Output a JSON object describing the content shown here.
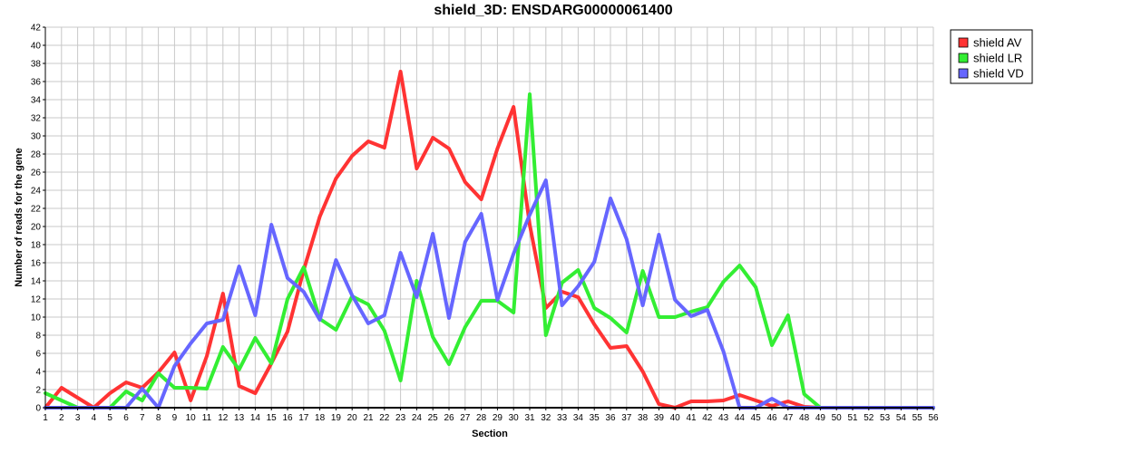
{
  "chart_data": {
    "type": "line",
    "title": "shield_3D: ENSDARG00000061400",
    "xlabel": "Section",
    "ylabel": "Number of reads for the gene",
    "x": [
      1,
      2,
      3,
      4,
      5,
      6,
      7,
      8,
      9,
      10,
      11,
      12,
      13,
      14,
      15,
      16,
      17,
      18,
      19,
      20,
      21,
      22,
      23,
      24,
      25,
      26,
      27,
      28,
      29,
      30,
      31,
      32,
      33,
      34,
      35,
      36,
      37,
      38,
      39,
      40,
      41,
      42,
      43,
      44,
      45,
      46,
      47,
      48,
      49,
      50,
      51,
      52,
      53,
      54,
      55,
      56
    ],
    "xlim": [
      1,
      56
    ],
    "ylim": [
      0,
      42
    ],
    "yticks": [
      0,
      2,
      4,
      6,
      8,
      10,
      12,
      14,
      16,
      18,
      20,
      22,
      24,
      26,
      28,
      30,
      32,
      34,
      36,
      38,
      40,
      42
    ],
    "grid": true,
    "legend_position": "top-right",
    "series": [
      {
        "name": "shield AV",
        "color": "#ff3333",
        "values": [
          0,
          2.2,
          1.1,
          0,
          1.6,
          2.8,
          2.2,
          3.9,
          6.1,
          0.8,
          5.7,
          12.6,
          2.4,
          1.6,
          4.9,
          8.4,
          15.2,
          21.1,
          25.3,
          27.8,
          29.4,
          28.7,
          37.1,
          26.4,
          29.8,
          28.6,
          24.9,
          23.0,
          28.6,
          33.2,
          20.2,
          11.0,
          12.8,
          12.2,
          9.2,
          6.6,
          6.8,
          4.0,
          0.4,
          0,
          0.7,
          0.7,
          0.8,
          1.4,
          0.8,
          0.2,
          0.7,
          0.1,
          0,
          0,
          0,
          0,
          0,
          0,
          0,
          0
        ]
      },
      {
        "name": "shield LR",
        "color": "#33ee33",
        "values": [
          1.6,
          0.8,
          0,
          0,
          0,
          1.8,
          0.8,
          3.8,
          2.2,
          2.2,
          2.1,
          6.7,
          4.2,
          7.7,
          4.9,
          12.0,
          15.5,
          9.8,
          8.6,
          12.3,
          11.4,
          8.5,
          3.0,
          14.0,
          7.8,
          4.8,
          8.9,
          11.8,
          11.8,
          10.5,
          34.6,
          8.0,
          13.8,
          15.2,
          11.0,
          9.9,
          8.3,
          15.1,
          10.0,
          10.0,
          10.6,
          11.1,
          13.9,
          15.7,
          13.3,
          6.9,
          10.2,
          1.5,
          0,
          0,
          0,
          0,
          0,
          0,
          0,
          0
        ]
      },
      {
        "name": "shield VD",
        "color": "#6666ff",
        "values": [
          0,
          0,
          0,
          0,
          0,
          0,
          2.1,
          0,
          4.6,
          7.1,
          9.3,
          9.7,
          15.6,
          10.2,
          20.2,
          14.3,
          12.8,
          9.7,
          16.3,
          12.4,
          9.3,
          10.2,
          17.1,
          12.2,
          19.2,
          9.9,
          18.3,
          21.4,
          11.9,
          17.0,
          21.3,
          25.1,
          11.3,
          13.4,
          16.1,
          23.1,
          18.6,
          11.3,
          19.1,
          11.9,
          10.1,
          10.8,
          6.2,
          0,
          0,
          1.0,
          0,
          0,
          0,
          0,
          0,
          0,
          0,
          0,
          0,
          0
        ]
      }
    ]
  }
}
